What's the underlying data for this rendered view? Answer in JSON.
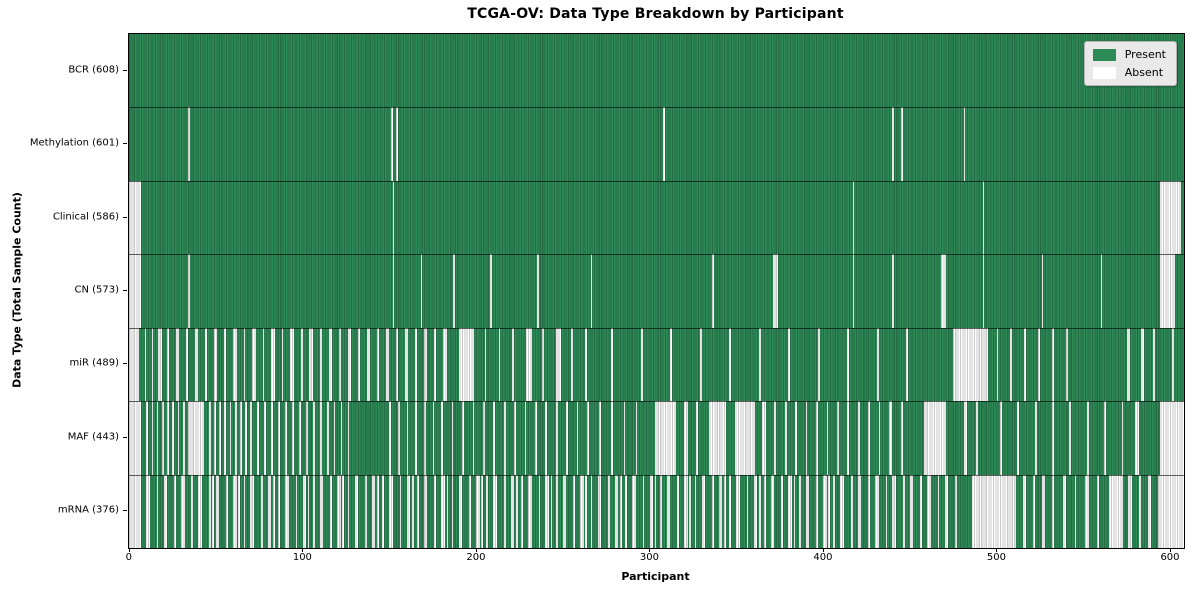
{
  "colors": {
    "present": "#2e8b57",
    "absent": "#ffffff",
    "row_separator": "rgba(0,0,0,0.6)",
    "legend_bg": "#e9e9e9",
    "legend_border": "#b3b3b3",
    "spine": "#000000"
  },
  "chart_data": {
    "type": "heatmap",
    "title": "TCGA-OV: Data Type Breakdown by Participant",
    "xlabel": "Participant",
    "ylabel": "Data Type (Total Sample Count)",
    "legend": {
      "present": "Present",
      "absent": "Absent"
    },
    "legend_position": "upper right",
    "n_participants": 608,
    "x_ticks": [
      0,
      100,
      200,
      300,
      400,
      500,
      600
    ],
    "x_range": [
      0,
      608
    ],
    "grid": false,
    "cell_values": "1 = Present (green), 0 = Absent (white); absent_ranges list inclusive participant index spans that are Absent, all other participants Present",
    "rows": [
      {
        "name": "BCR",
        "label": "BCR (608)",
        "count": 608,
        "absent_ranges": []
      },
      {
        "name": "Methylation",
        "label": "Methylation (601)",
        "count": 601,
        "absent_ranges": [
          [
            34,
            34
          ],
          [
            151,
            151
          ],
          [
            154,
            154
          ],
          [
            308,
            308
          ],
          [
            440,
            440
          ],
          [
            445,
            445
          ],
          [
            481,
            481
          ]
        ]
      },
      {
        "name": "Clinical",
        "label": "Clinical (586)",
        "count": 586,
        "absent_ranges": [
          [
            0,
            6
          ],
          [
            152,
            152
          ],
          [
            417,
            417
          ],
          [
            492,
            492
          ],
          [
            594,
            605
          ]
        ]
      },
      {
        "name": "CN",
        "label": "CN (573)",
        "count": 573,
        "absent_ranges": [
          [
            0,
            6
          ],
          [
            34,
            34
          ],
          [
            152,
            152
          ],
          [
            168,
            168
          ],
          [
            187,
            187
          ],
          [
            208,
            208
          ],
          [
            235,
            235
          ],
          [
            266,
            266
          ],
          [
            336,
            336
          ],
          [
            371,
            373
          ],
          [
            417,
            417
          ],
          [
            440,
            440
          ],
          [
            468,
            470
          ],
          [
            492,
            492
          ],
          [
            526,
            526
          ],
          [
            560,
            560
          ],
          [
            594,
            602
          ]
        ]
      },
      {
        "name": "miR",
        "label": "miR (489)",
        "count": 489,
        "absent_ranges": [
          [
            0,
            5
          ],
          [
            9,
            9
          ],
          [
            13,
            13
          ],
          [
            17,
            18
          ],
          [
            22,
            22
          ],
          [
            27,
            28
          ],
          [
            33,
            33
          ],
          [
            38,
            39
          ],
          [
            44,
            44
          ],
          [
            49,
            50
          ],
          [
            55,
            55
          ],
          [
            60,
            61
          ],
          [
            66,
            66
          ],
          [
            71,
            72
          ],
          [
            77,
            77
          ],
          [
            82,
            83
          ],
          [
            88,
            88
          ],
          [
            93,
            94
          ],
          [
            99,
            99
          ],
          [
            104,
            105
          ],
          [
            110,
            110
          ],
          [
            115,
            116
          ],
          [
            121,
            121
          ],
          [
            126,
            127
          ],
          [
            132,
            132
          ],
          [
            137,
            138
          ],
          [
            143,
            143
          ],
          [
            148,
            149
          ],
          [
            154,
            154
          ],
          [
            159,
            160
          ],
          [
            165,
            165
          ],
          [
            170,
            171
          ],
          [
            176,
            176
          ],
          [
            181,
            182
          ],
          [
            190,
            198
          ],
          [
            205,
            205
          ],
          [
            213,
            213
          ],
          [
            221,
            221
          ],
          [
            229,
            231
          ],
          [
            238,
            238
          ],
          [
            246,
            248
          ],
          [
            255,
            255
          ],
          [
            263,
            263
          ],
          [
            278,
            278
          ],
          [
            295,
            295
          ],
          [
            312,
            312
          ],
          [
            329,
            329
          ],
          [
            346,
            346
          ],
          [
            363,
            363
          ],
          [
            380,
            380
          ],
          [
            397,
            397
          ],
          [
            414,
            414
          ],
          [
            431,
            431
          ],
          [
            448,
            448
          ],
          [
            475,
            494
          ],
          [
            500,
            500
          ],
          [
            508,
            508
          ],
          [
            516,
            516
          ],
          [
            524,
            524
          ],
          [
            532,
            532
          ],
          [
            540,
            540
          ],
          [
            575,
            576
          ],
          [
            583,
            584
          ],
          [
            590,
            590
          ],
          [
            601,
            601
          ]
        ]
      },
      {
        "name": "MAF",
        "label": "MAF (443)",
        "count": 443,
        "absent_ranges": [
          [
            0,
            6
          ],
          [
            10,
            10
          ],
          [
            13,
            13
          ],
          [
            16,
            16
          ],
          [
            19,
            19
          ],
          [
            22,
            22
          ],
          [
            25,
            25
          ],
          [
            28,
            28
          ],
          [
            31,
            31
          ],
          [
            34,
            42
          ],
          [
            46,
            46
          ],
          [
            49,
            49
          ],
          [
            52,
            52
          ],
          [
            55,
            55
          ],
          [
            58,
            58
          ],
          [
            61,
            61
          ],
          [
            64,
            64
          ],
          [
            67,
            67
          ],
          [
            70,
            70
          ],
          [
            74,
            74
          ],
          [
            78,
            78
          ],
          [
            82,
            82
          ],
          [
            86,
            86
          ],
          [
            90,
            90
          ],
          [
            94,
            94
          ],
          [
            98,
            98
          ],
          [
            102,
            102
          ],
          [
            106,
            106
          ],
          [
            110,
            110
          ],
          [
            114,
            114
          ],
          [
            118,
            118
          ],
          [
            122,
            122
          ],
          [
            126,
            126
          ],
          [
            150,
            150
          ],
          [
            155,
            155
          ],
          [
            160,
            160
          ],
          [
            165,
            165
          ],
          [
            170,
            170
          ],
          [
            175,
            175
          ],
          [
            180,
            180
          ],
          [
            186,
            186
          ],
          [
            192,
            192
          ],
          [
            198,
            198
          ],
          [
            204,
            204
          ],
          [
            210,
            210
          ],
          [
            216,
            216
          ],
          [
            222,
            222
          ],
          [
            228,
            228
          ],
          [
            234,
            234
          ],
          [
            240,
            240
          ],
          [
            246,
            246
          ],
          [
            252,
            252
          ],
          [
            258,
            258
          ],
          [
            264,
            264
          ],
          [
            271,
            271
          ],
          [
            278,
            278
          ],
          [
            285,
            285
          ],
          [
            292,
            292
          ],
          [
            303,
            314
          ],
          [
            320,
            321
          ],
          [
            327,
            327
          ],
          [
            334,
            343
          ],
          [
            349,
            360
          ],
          [
            365,
            366
          ],
          [
            372,
            372
          ],
          [
            378,
            378
          ],
          [
            384,
            384
          ],
          [
            390,
            390
          ],
          [
            396,
            396
          ],
          [
            402,
            402
          ],
          [
            408,
            408
          ],
          [
            414,
            414
          ],
          [
            420,
            420
          ],
          [
            426,
            426
          ],
          [
            432,
            432
          ],
          [
            438,
            439
          ],
          [
            445,
            445
          ],
          [
            458,
            470
          ],
          [
            481,
            482
          ],
          [
            488,
            488
          ],
          [
            502,
            502
          ],
          [
            512,
            512
          ],
          [
            522,
            522
          ],
          [
            532,
            532
          ],
          [
            542,
            542
          ],
          [
            552,
            552
          ],
          [
            562,
            562
          ],
          [
            572,
            572
          ],
          [
            580,
            581
          ],
          [
            594,
            607
          ]
        ]
      },
      {
        "name": "mRNA",
        "label": "mRNA (376)",
        "count": 376,
        "absent_ranges": [
          [
            0,
            6
          ],
          [
            10,
            11
          ],
          [
            16,
            16
          ],
          [
            20,
            21
          ],
          [
            26,
            26
          ],
          [
            30,
            31
          ],
          [
            36,
            36
          ],
          [
            40,
            41
          ],
          [
            46,
            46
          ],
          [
            48,
            48
          ],
          [
            50,
            51
          ],
          [
            56,
            56
          ],
          [
            60,
            61
          ],
          [
            63,
            63
          ],
          [
            66,
            66
          ],
          [
            70,
            71
          ],
          [
            76,
            76
          ],
          [
            80,
            81
          ],
          [
            83,
            83
          ],
          [
            86,
            86
          ],
          [
            90,
            91
          ],
          [
            96,
            96
          ],
          [
            100,
            101
          ],
          [
            103,
            103
          ],
          [
            106,
            106
          ],
          [
            110,
            111
          ],
          [
            116,
            116
          ],
          [
            120,
            121
          ],
          [
            123,
            123
          ],
          [
            126,
            126
          ],
          [
            130,
            131
          ],
          [
            136,
            136
          ],
          [
            140,
            141
          ],
          [
            143,
            143
          ],
          [
            146,
            146
          ],
          [
            150,
            151
          ],
          [
            156,
            156
          ],
          [
            160,
            161
          ],
          [
            163,
            163
          ],
          [
            166,
            166
          ],
          [
            170,
            171
          ],
          [
            176,
            176
          ],
          [
            180,
            181
          ],
          [
            183,
            183
          ],
          [
            186,
            186
          ],
          [
            190,
            191
          ],
          [
            196,
            196
          ],
          [
            200,
            201
          ],
          [
            203,
            203
          ],
          [
            206,
            206
          ],
          [
            210,
            211
          ],
          [
            216,
            216
          ],
          [
            220,
            221
          ],
          [
            223,
            223
          ],
          [
            226,
            226
          ],
          [
            230,
            231
          ],
          [
            236,
            236
          ],
          [
            240,
            241
          ],
          [
            243,
            243
          ],
          [
            246,
            246
          ],
          [
            250,
            251
          ],
          [
            256,
            256
          ],
          [
            260,
            261
          ],
          [
            263,
            263
          ],
          [
            266,
            266
          ],
          [
            270,
            271
          ],
          [
            276,
            276
          ],
          [
            280,
            281
          ],
          [
            283,
            283
          ],
          [
            286,
            286
          ],
          [
            290,
            291
          ],
          [
            296,
            296
          ],
          [
            300,
            301
          ],
          [
            303,
            303
          ],
          [
            306,
            306
          ],
          [
            310,
            311
          ],
          [
            316,
            316
          ],
          [
            320,
            321
          ],
          [
            323,
            323
          ],
          [
            326,
            326
          ],
          [
            330,
            331
          ],
          [
            336,
            336
          ],
          [
            340,
            341
          ],
          [
            343,
            343
          ],
          [
            346,
            346
          ],
          [
            350,
            351
          ],
          [
            356,
            356
          ],
          [
            360,
            361
          ],
          [
            363,
            363
          ],
          [
            366,
            366
          ],
          [
            370,
            371
          ],
          [
            376,
            376
          ],
          [
            380,
            381
          ],
          [
            383,
            383
          ],
          [
            386,
            386
          ],
          [
            390,
            391
          ],
          [
            396,
            396
          ],
          [
            400,
            401
          ],
          [
            403,
            403
          ],
          [
            406,
            406
          ],
          [
            410,
            411
          ],
          [
            416,
            416
          ],
          [
            420,
            421
          ],
          [
            426,
            426
          ],
          [
            430,
            431
          ],
          [
            436,
            436
          ],
          [
            440,
            441
          ],
          [
            446,
            446
          ],
          [
            450,
            451
          ],
          [
            456,
            456
          ],
          [
            460,
            461
          ],
          [
            466,
            466
          ],
          [
            470,
            471
          ],
          [
            476,
            476
          ],
          [
            486,
            510
          ],
          [
            515,
            516
          ],
          [
            521,
            521
          ],
          [
            526,
            527
          ],
          [
            532,
            532
          ],
          [
            538,
            539
          ],
          [
            545,
            545
          ],
          [
            551,
            552
          ],
          [
            558,
            558
          ],
          [
            565,
            572
          ],
          [
            576,
            577
          ],
          [
            582,
            582
          ],
          [
            587,
            588
          ],
          [
            593,
            607
          ]
        ]
      }
    ]
  }
}
